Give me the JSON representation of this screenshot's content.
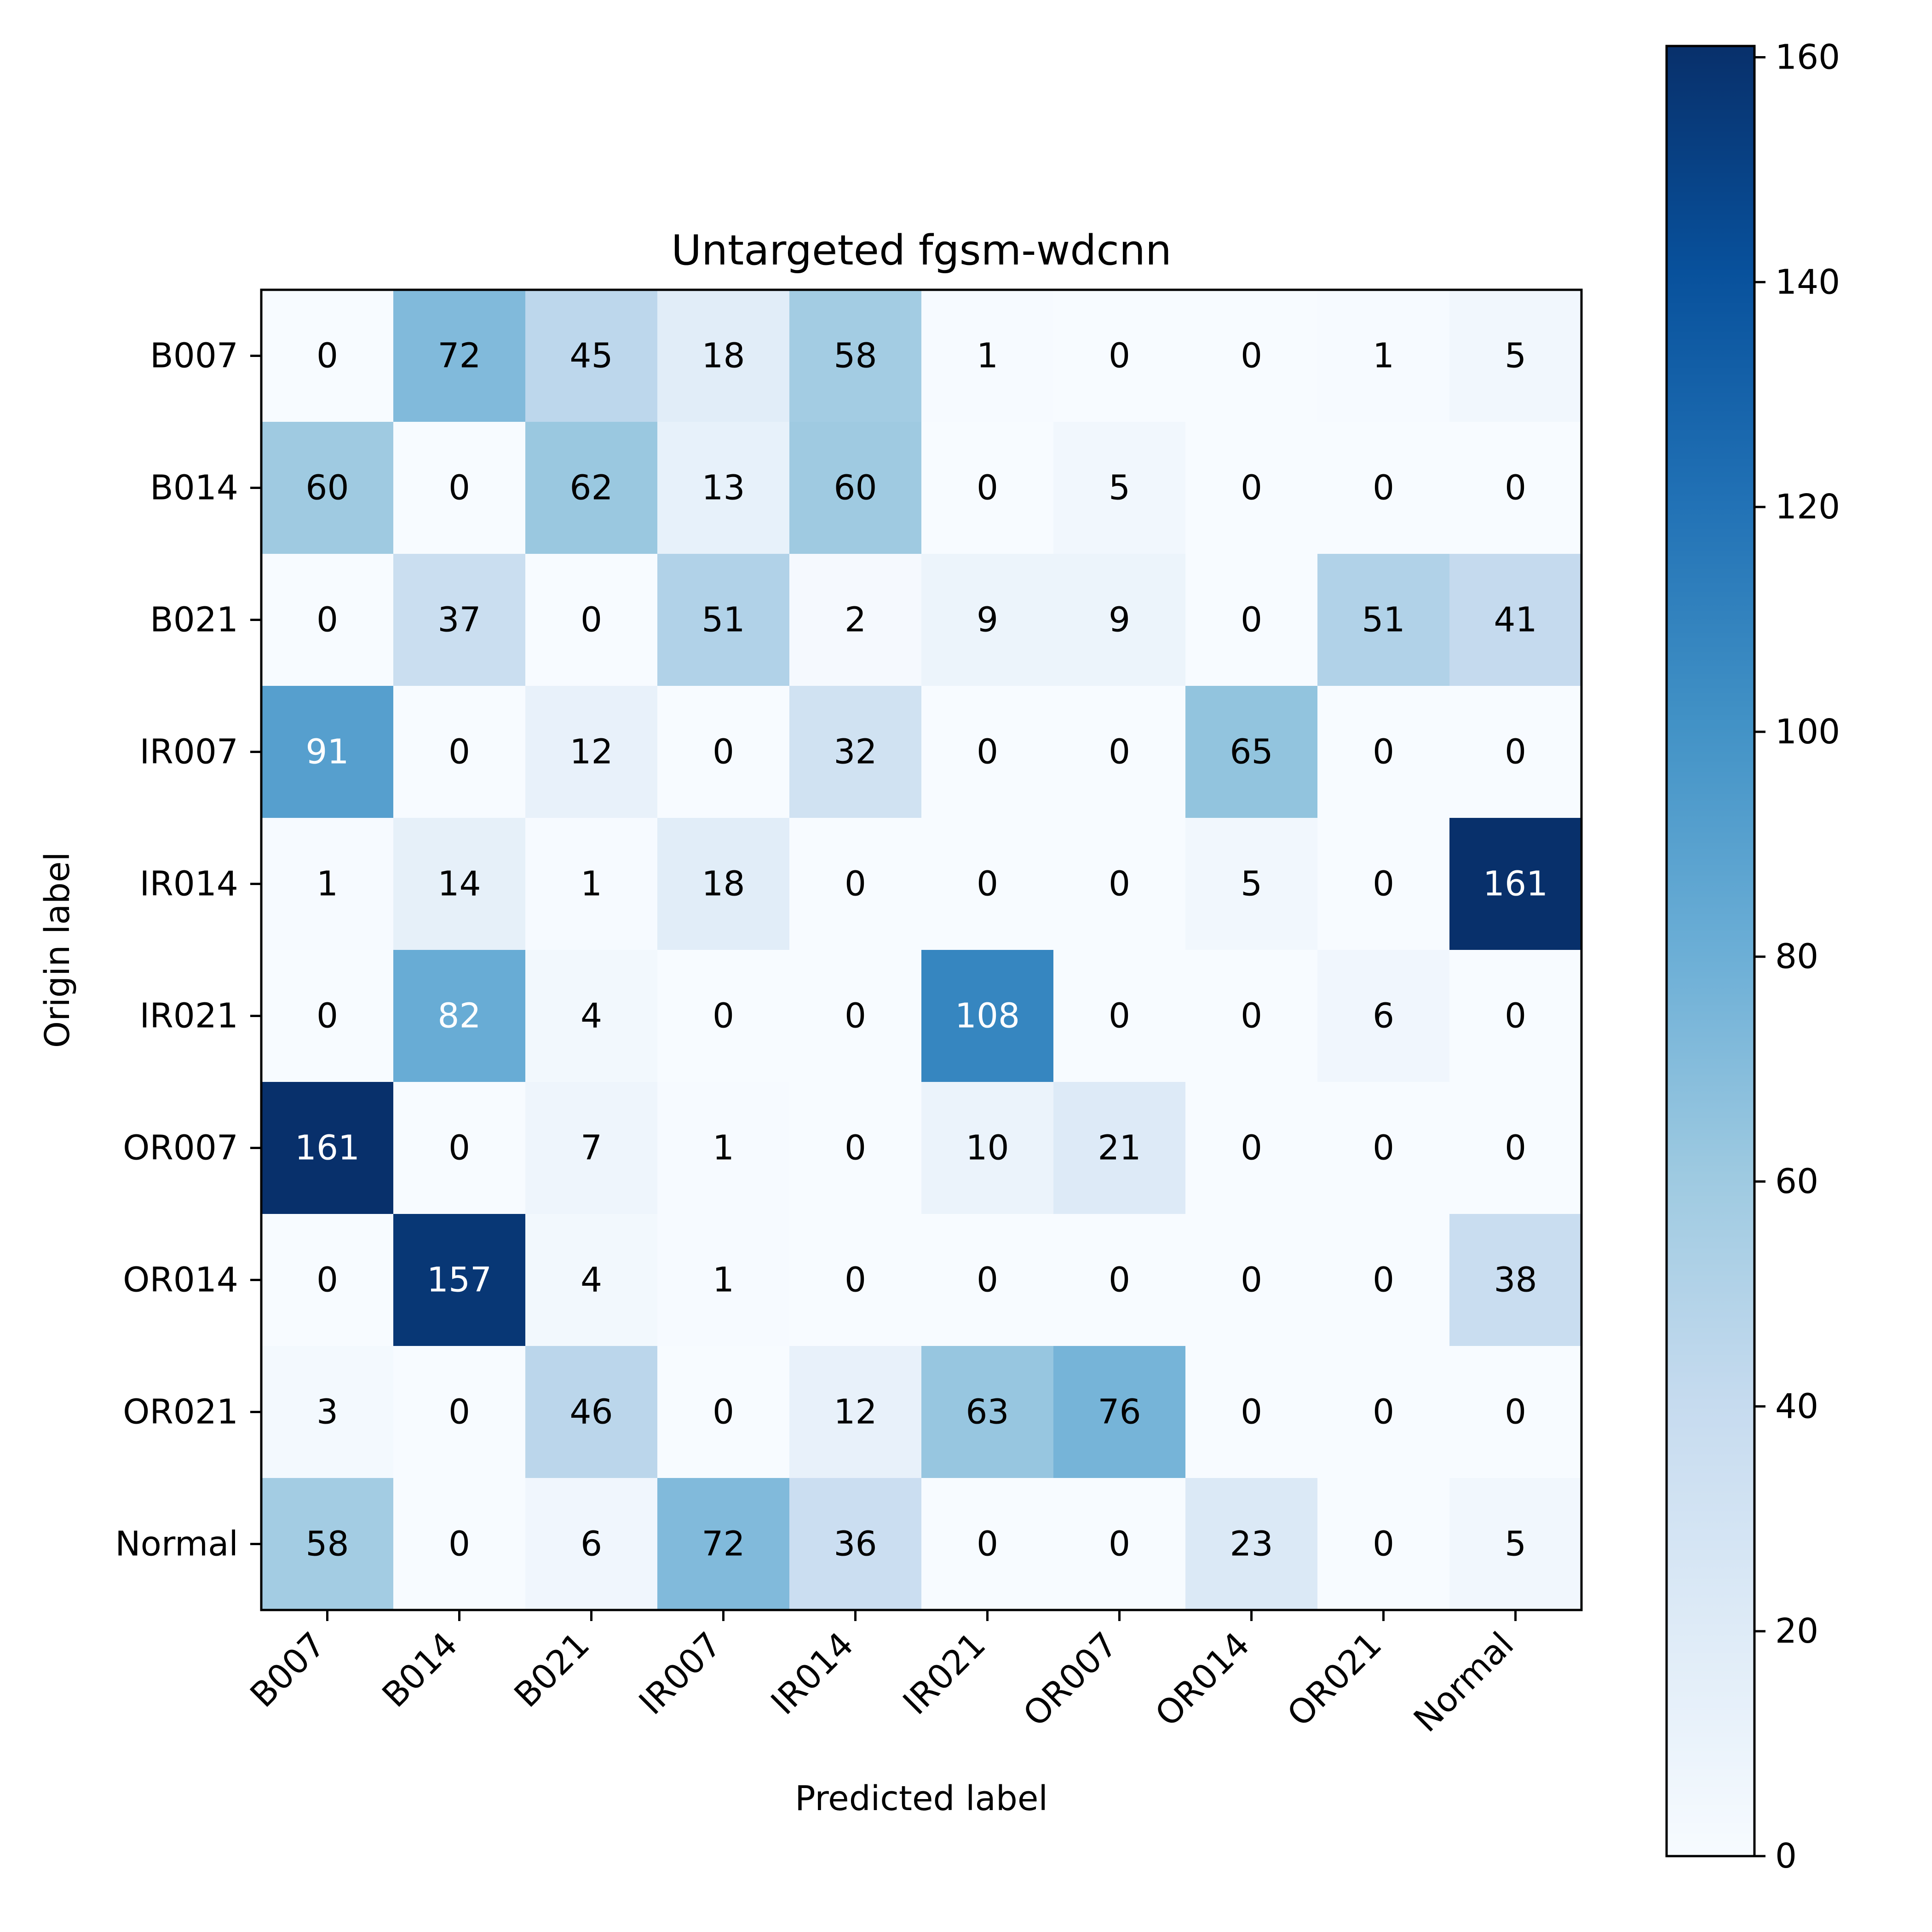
{
  "chart_data": {
    "type": "heatmap",
    "title": "Untargeted fgsm-wdcnn",
    "xlabel": "Predicted label",
    "ylabel": "Origin label",
    "x_categories": [
      "B007",
      "B014",
      "B021",
      "IR007",
      "IR014",
      "IR021",
      "OR007",
      "OR014",
      "OR021",
      "Normal"
    ],
    "y_categories": [
      "B007",
      "B014",
      "B021",
      "IR007",
      "IR014",
      "IR021",
      "OR007",
      "OR014",
      "OR021",
      "Normal"
    ],
    "values": [
      [
        0,
        72,
        45,
        18,
        58,
        1,
        0,
        0,
        1,
        5
      ],
      [
        60,
        0,
        62,
        13,
        60,
        0,
        5,
        0,
        0,
        0
      ],
      [
        0,
        37,
        0,
        51,
        2,
        9,
        9,
        0,
        51,
        41
      ],
      [
        91,
        0,
        12,
        0,
        32,
        0,
        0,
        65,
        0,
        0
      ],
      [
        1,
        14,
        1,
        18,
        0,
        0,
        0,
        5,
        0,
        161
      ],
      [
        0,
        82,
        4,
        0,
        0,
        108,
        0,
        0,
        6,
        0
      ],
      [
        161,
        0,
        7,
        1,
        0,
        10,
        21,
        0,
        0,
        0
      ],
      [
        0,
        157,
        4,
        1,
        0,
        0,
        0,
        0,
        0,
        38
      ],
      [
        3,
        0,
        46,
        0,
        12,
        63,
        76,
        0,
        0,
        0
      ],
      [
        58,
        0,
        6,
        72,
        36,
        0,
        0,
        23,
        0,
        5
      ]
    ],
    "colormap": "Blues",
    "colorbar": {
      "range": [
        0,
        161
      ],
      "ticks": [
        0,
        20,
        40,
        60,
        80,
        100,
        120,
        140,
        160
      ]
    },
    "x_tick_rotation_deg": 45,
    "grid": false
  }
}
